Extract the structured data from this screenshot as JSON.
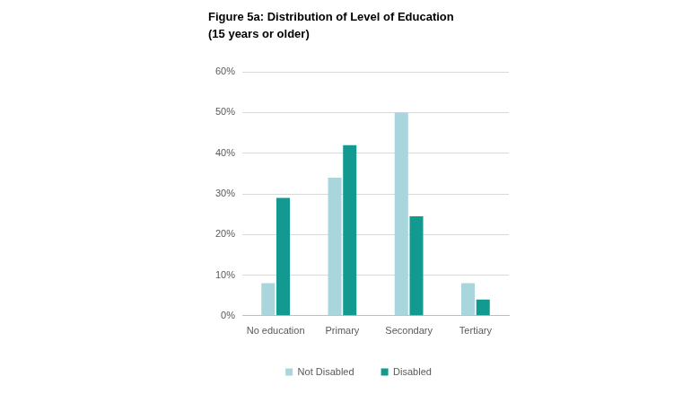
{
  "chart_data": {
    "type": "bar",
    "title": "Figure 5a: Distribution of Level of Education",
    "subtitle": "(15 years or older)",
    "categories": [
      "No education",
      "Primary",
      "Secondary",
      "Tertiary"
    ],
    "series": [
      {
        "name": "Not Disabled",
        "color": "#a9d5dd",
        "values": [
          8,
          34,
          50,
          8
        ]
      },
      {
        "name": "Disabled",
        "color": "#129a91",
        "values": [
          29,
          42,
          24.5,
          4
        ]
      }
    ],
    "ylim": [
      0,
      60
    ],
    "yticks": [
      {
        "value": 0,
        "label": "0%"
      },
      {
        "value": 10,
        "label": "10%"
      },
      {
        "value": 20,
        "label": "20%"
      },
      {
        "value": 30,
        "label": "30%"
      },
      {
        "value": 40,
        "label": "40%"
      },
      {
        "value": 50,
        "label": "50%"
      },
      {
        "value": 60,
        "label": "60%"
      }
    ],
    "grid": true,
    "legend": "bottom"
  }
}
